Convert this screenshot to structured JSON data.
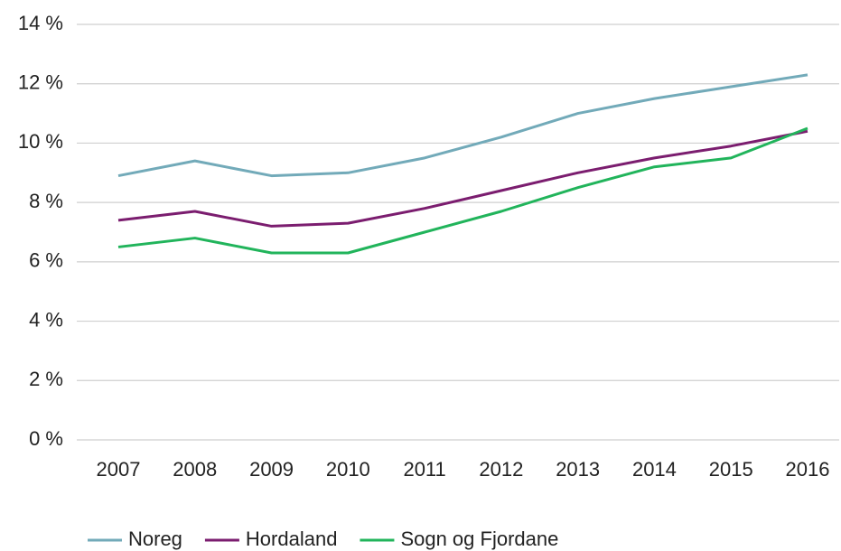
{
  "chart_data": {
    "type": "line",
    "categories": [
      "2007",
      "2008",
      "2009",
      "2010",
      "2011",
      "2012",
      "2013",
      "2014",
      "2015",
      "2016"
    ],
    "series": [
      {
        "name": "Noreg",
        "color": "#72aab9",
        "values": [
          8.9,
          9.4,
          8.9,
          9.0,
          9.5,
          10.2,
          11.0,
          11.5,
          11.9,
          12.3
        ]
      },
      {
        "name": "Hordaland",
        "color": "#7b1d6f",
        "values": [
          7.4,
          7.7,
          7.2,
          7.3,
          7.8,
          8.4,
          9.0,
          9.5,
          9.9,
          10.4
        ]
      },
      {
        "name": "Sogn og Fjordane",
        "color": "#21b45b",
        "values": [
          6.5,
          6.8,
          6.3,
          6.3,
          7.0,
          7.7,
          8.5,
          9.2,
          9.5,
          10.5
        ]
      }
    ],
    "ylim": [
      0,
      14
    ],
    "yticks": [
      {
        "value": 0,
        "label": "0 %"
      },
      {
        "value": 2,
        "label": "2 %"
      },
      {
        "value": 4,
        "label": "4 %"
      },
      {
        "value": 6,
        "label": "6 %"
      },
      {
        "value": 8,
        "label": "8 %"
      },
      {
        "value": 10,
        "label": "10 %"
      },
      {
        "value": 12,
        "label": "12 %"
      },
      {
        "value": 14,
        "label": "14 %"
      }
    ],
    "grid": true,
    "legend": "bottom"
  }
}
